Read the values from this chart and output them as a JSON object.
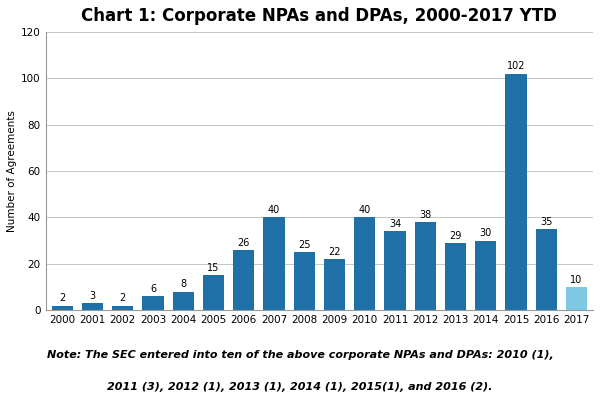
{
  "title": "Chart 1: Corporate NPAs and DPAs, 2000-2017 YTD",
  "years": [
    "2000",
    "2001",
    "2002",
    "2003",
    "2004",
    "2005",
    "2006",
    "2007",
    "2008",
    "2009",
    "2010",
    "2011",
    "2012",
    "2013",
    "2014",
    "2015",
    "2016",
    "2017"
  ],
  "values": [
    2,
    3,
    2,
    6,
    8,
    15,
    26,
    40,
    25,
    22,
    40,
    34,
    38,
    29,
    30,
    102,
    35,
    10
  ],
  "bar_colors": [
    "#2070A8",
    "#2070A8",
    "#2070A8",
    "#2070A8",
    "#2070A8",
    "#2070A8",
    "#2070A8",
    "#2070A8",
    "#2070A8",
    "#2070A8",
    "#2070A8",
    "#2070A8",
    "#2070A8",
    "#2070A8",
    "#2070A8",
    "#2070A8",
    "#2070A8",
    "#7EC8E3"
  ],
  "ylabel": "Number of Agreements",
  "ylim": [
    0,
    120
  ],
  "yticks": [
    0,
    20,
    40,
    60,
    80,
    100,
    120
  ],
  "note_line1": "Note: The SEC entered into ten of the above corporate NPAs and DPAs: 2010 (1),",
  "note_line2": "2011 (3), 2012 (1), 2013 (1), 2014 (1), 2015(1), and 2016 (2).",
  "title_fontsize": 12,
  "axis_label_fontsize": 7.5,
  "tick_fontsize": 7.5,
  "bar_label_fontsize": 7,
  "note_fontsize": 8,
  "bar_width": 0.7,
  "background_color": "#FFFFFF",
  "grid_color": "#BBBBBB",
  "spine_color": "#999999"
}
